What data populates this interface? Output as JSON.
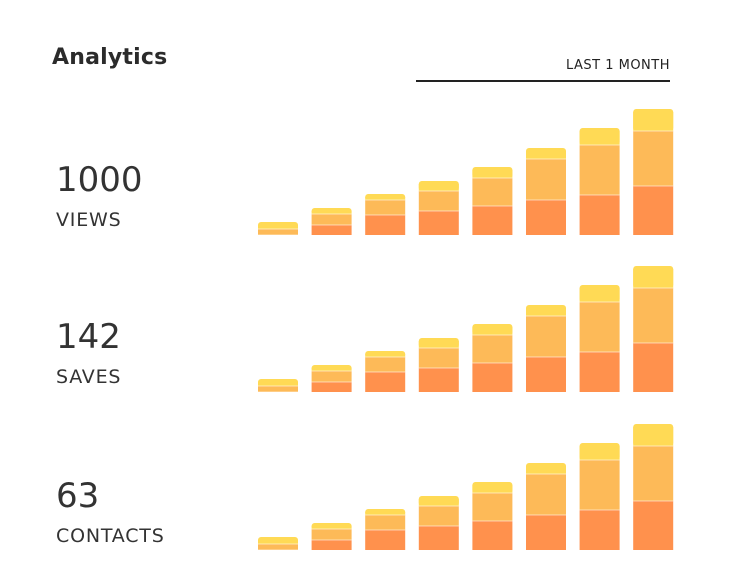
{
  "header": {
    "title": "Analytics",
    "period_label": "LAST 1 MONTH"
  },
  "colors": {
    "segment_top": "#FFDA55",
    "segment_middle": "#FDBA58",
    "segment_bottom": "#FF914D"
  },
  "metrics": [
    {
      "value": "1000",
      "label": "VIEWS"
    },
    {
      "value": "142",
      "label": "SAVES"
    },
    {
      "value": "63",
      "label": "CONTACTS"
    }
  ],
  "chart_data": [
    {
      "type": "bar",
      "stacked": true,
      "grid": false,
      "series": [
        {
          "values": [
            0,
            10,
            20,
            24,
            29,
            35,
            40,
            49
          ]
        },
        {
          "values": [
            6,
            11,
            15,
            20,
            28,
            41,
            50,
            55
          ]
        },
        {
          "values": [
            7,
            6,
            6,
            10,
            11,
            11,
            17,
            22
          ]
        }
      ]
    },
    {
      "type": "bar",
      "stacked": true,
      "grid": false,
      "series": [
        {
          "values": [
            0,
            10,
            20,
            24,
            29,
            35,
            40,
            49
          ]
        },
        {
          "values": [
            6,
            11,
            15,
            20,
            28,
            41,
            50,
            55
          ]
        },
        {
          "values": [
            7,
            6,
            6,
            10,
            11,
            11,
            17,
            22
          ]
        }
      ]
    },
    {
      "type": "bar",
      "stacked": true,
      "grid": false,
      "series": [
        {
          "values": [
            0,
            10,
            20,
            24,
            29,
            35,
            40,
            49
          ]
        },
        {
          "values": [
            6,
            11,
            15,
            20,
            28,
            41,
            50,
            55
          ]
        },
        {
          "values": [
            7,
            6,
            6,
            10,
            11,
            11,
            17,
            22
          ]
        }
      ]
    }
  ]
}
